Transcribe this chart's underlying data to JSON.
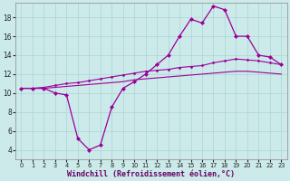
{
  "xlabel": "Windchill (Refroidissement éolien,°C)",
  "bg_color": "#cdeaea",
  "line_color": "#990099",
  "grid_color": "#b0d8d8",
  "xlim": [
    -0.5,
    23.5
  ],
  "ylim": [
    3.0,
    19.5
  ],
  "yticks": [
    4,
    6,
    8,
    10,
    12,
    14,
    16,
    18
  ],
  "xticks": [
    0,
    1,
    2,
    3,
    4,
    5,
    6,
    7,
    8,
    9,
    10,
    11,
    12,
    13,
    14,
    15,
    16,
    17,
    18,
    19,
    20,
    21,
    22,
    23
  ],
  "series1_x": [
    0,
    1,
    2,
    3,
    4,
    5,
    6,
    7,
    8,
    9,
    10,
    11,
    12,
    13,
    14,
    15,
    16,
    17,
    18,
    19,
    20,
    21,
    22,
    23
  ],
  "series1_y": [
    10.5,
    10.5,
    10.5,
    10.0,
    9.8,
    5.2,
    4.0,
    4.5,
    8.5,
    10.5,
    11.2,
    12.0,
    13.0,
    14.0,
    16.0,
    17.8,
    17.4,
    19.2,
    18.8,
    16.0,
    16.0,
    14.0,
    13.8,
    13.0
  ],
  "series2_x": [
    0,
    1,
    2,
    3,
    4,
    5,
    6,
    7,
    8,
    9,
    10,
    11,
    12,
    13,
    14,
    15,
    16,
    17,
    18,
    19,
    20,
    21,
    22,
    23
  ],
  "series2_y": [
    10.5,
    10.5,
    10.6,
    10.8,
    11.0,
    11.1,
    11.3,
    11.5,
    11.7,
    11.9,
    12.1,
    12.3,
    12.4,
    12.5,
    12.7,
    12.8,
    12.9,
    13.2,
    13.4,
    13.6,
    13.5,
    13.4,
    13.2,
    13.0
  ],
  "series3_x": [
    0,
    1,
    2,
    3,
    4,
    5,
    6,
    7,
    8,
    9,
    10,
    11,
    12,
    13,
    14,
    15,
    16,
    17,
    18,
    19,
    20,
    21,
    22,
    23
  ],
  "series3_y": [
    10.5,
    10.5,
    10.5,
    10.6,
    10.7,
    10.8,
    10.9,
    11.0,
    11.1,
    11.2,
    11.4,
    11.5,
    11.6,
    11.7,
    11.8,
    11.9,
    12.0,
    12.1,
    12.2,
    12.3,
    12.3,
    12.2,
    12.1,
    12.0
  ],
  "xlabel_color": "#660066",
  "xlabel_fontsize": 6.0,
  "tick_fontsize_x": 4.8,
  "tick_fontsize_y": 5.5
}
